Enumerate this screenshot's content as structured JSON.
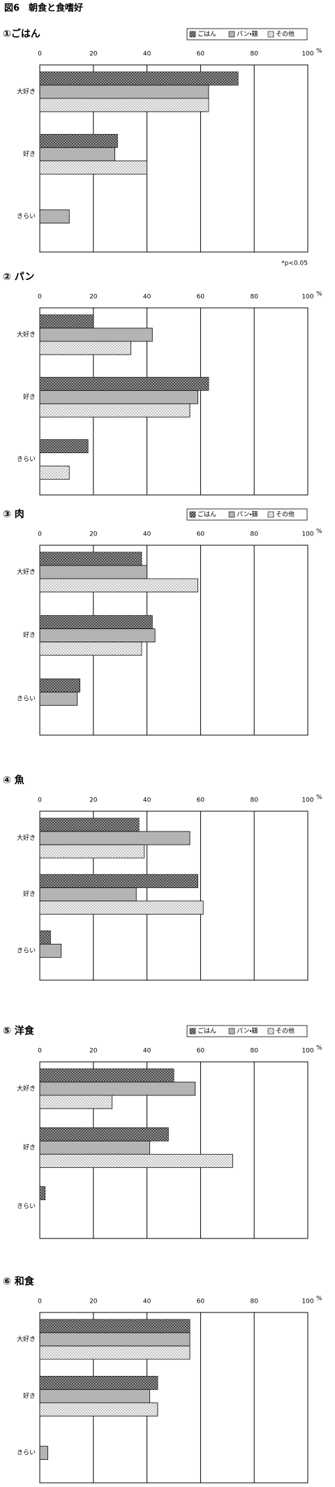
{
  "title": "図6　朝食と食嗜好",
  "chart_data": [
    {
      "type": "bar",
      "orientation": "horizontal",
      "subtitle": "①ごはん",
      "unit": "%",
      "legend": true,
      "categories": [
        "大好き",
        "好き",
        "きらい"
      ],
      "series": [
        {
          "name": "ごはん",
          "color": "#3a3a3a",
          "pattern": "crosshatch",
          "values": [
            74,
            29,
            0
          ]
        },
        {
          "name": "パン・麺",
          "color": "#b4b4b4",
          "pattern": "solid",
          "values": [
            63,
            28,
            11
          ]
        },
        {
          "name": "その他",
          "color": "#f2f2f2",
          "pattern": "dots",
          "values": [
            63,
            40,
            0
          ]
        }
      ],
      "xlim": [
        0,
        100
      ],
      "xticks": [
        0,
        20,
        40,
        60,
        80,
        100
      ],
      "grid": true
    },
    {
      "type": "bar",
      "orientation": "horizontal",
      "subtitle": "② パン",
      "unit": "%",
      "legend": false,
      "annotation": "*p<0.05",
      "categories": [
        "大好き",
        "好き",
        "きらい"
      ],
      "series": [
        {
          "name": "ごはん",
          "color": "#3a3a3a",
          "pattern": "crosshatch",
          "values": [
            20,
            63,
            18
          ]
        },
        {
          "name": "パン・麺",
          "color": "#b4b4b4",
          "pattern": "solid",
          "values": [
            42,
            59,
            0
          ]
        },
        {
          "name": "その他",
          "color": "#f2f2f2",
          "pattern": "dots",
          "values": [
            34,
            56,
            11
          ]
        }
      ],
      "xlim": [
        0,
        100
      ],
      "xticks": [
        0,
        20,
        40,
        60,
        80,
        100
      ],
      "grid": true
    },
    {
      "type": "bar",
      "orientation": "horizontal",
      "subtitle": "③ 肉",
      "unit": "%",
      "legend": true,
      "categories": [
        "大好き",
        "好き",
        "きらい"
      ],
      "series": [
        {
          "name": "ごはん",
          "color": "#3a3a3a",
          "pattern": "crosshatch",
          "values": [
            38,
            42,
            15
          ]
        },
        {
          "name": "パン・麺",
          "color": "#b4b4b4",
          "pattern": "solid",
          "values": [
            40,
            43,
            14
          ]
        },
        {
          "name": "その他",
          "color": "#f2f2f2",
          "pattern": "dots",
          "values": [
            59,
            38,
            0
          ]
        }
      ],
      "xlim": [
        0,
        100
      ],
      "xticks": [
        0,
        20,
        40,
        60,
        80,
        100
      ],
      "grid": true
    },
    {
      "type": "bar",
      "orientation": "horizontal",
      "subtitle": "④ 魚",
      "unit": "%",
      "legend": false,
      "categories": [
        "大好き",
        "好き",
        "きらい"
      ],
      "series": [
        {
          "name": "ごはん",
          "color": "#3a3a3a",
          "pattern": "crosshatch",
          "values": [
            37,
            59,
            4
          ]
        },
        {
          "name": "パン・麺",
          "color": "#b4b4b4",
          "pattern": "solid",
          "values": [
            56,
            36,
            8
          ]
        },
        {
          "name": "その他",
          "color": "#f2f2f2",
          "pattern": "dots",
          "values": [
            39,
            61,
            0
          ]
        }
      ],
      "xlim": [
        0,
        100
      ],
      "xticks": [
        0,
        20,
        40,
        60,
        80,
        100
      ],
      "grid": true
    },
    {
      "type": "bar",
      "orientation": "horizontal",
      "subtitle": "⑤ 洋食",
      "unit": "%",
      "legend": true,
      "categories": [
        "大好き",
        "好き",
        "きらい"
      ],
      "series": [
        {
          "name": "ごはん",
          "color": "#3a3a3a",
          "pattern": "crosshatch",
          "values": [
            50,
            48,
            2
          ]
        },
        {
          "name": "パン・麺",
          "color": "#b4b4b4",
          "pattern": "solid",
          "values": [
            58,
            41,
            0
          ]
        },
        {
          "name": "その他",
          "color": "#f2f2f2",
          "pattern": "dots",
          "values": [
            27,
            72,
            0
          ]
        }
      ],
      "xlim": [
        0,
        100
      ],
      "xticks": [
        0,
        20,
        40,
        60,
        80,
        100
      ],
      "grid": true
    },
    {
      "type": "bar",
      "orientation": "horizontal",
      "subtitle": "⑥ 和食",
      "unit": "%",
      "legend": false,
      "categories": [
        "大好き",
        "好き",
        "きらい"
      ],
      "series": [
        {
          "name": "ごはん",
          "color": "#3a3a3a",
          "pattern": "crosshatch",
          "values": [
            56,
            44,
            0
          ]
        },
        {
          "name": "パン・麺",
          "color": "#b4b4b4",
          "pattern": "solid",
          "values": [
            56,
            41,
            3
          ]
        },
        {
          "name": "その他",
          "color": "#f2f2f2",
          "pattern": "dots",
          "values": [
            56,
            44,
            0
          ]
        }
      ],
      "xlim": [
        0,
        100
      ],
      "xticks": [
        0,
        20,
        40,
        60,
        80,
        100
      ],
      "grid": true
    }
  ]
}
